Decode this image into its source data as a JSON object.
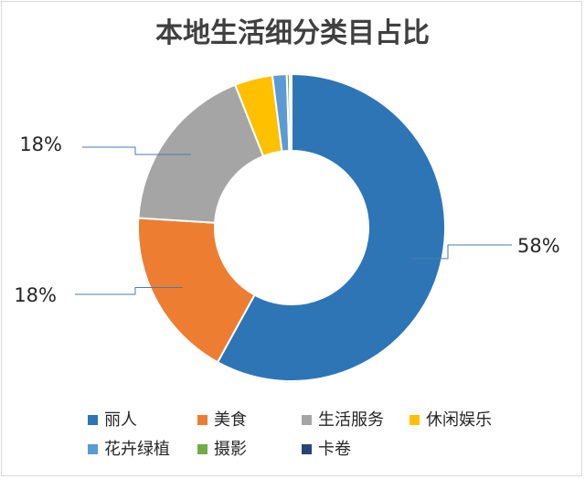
{
  "chart_data": {
    "type": "pie",
    "variant": "doughnut",
    "title": "本地生活细分类目占比",
    "categories": [
      "丽人",
      "美食",
      "生活服务",
      "休闲娱乐",
      "花卉绿植",
      "摄影",
      "卡卷"
    ],
    "values": [
      58,
      18,
      18,
      4,
      1.5,
      0.3,
      0.2
    ],
    "colors": [
      "#2e75b6",
      "#ed7d31",
      "#a5a5a5",
      "#ffc000",
      "#5b9bd5",
      "#70ad47",
      "#264478"
    ],
    "data_labels": [
      {
        "series_index": 0,
        "text": "58%"
      },
      {
        "series_index": 1,
        "text": "18%"
      },
      {
        "series_index": 2,
        "text": "18%"
      }
    ],
    "legend_position": "bottom"
  }
}
